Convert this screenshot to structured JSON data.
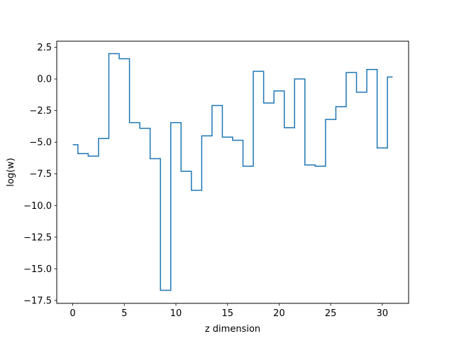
{
  "chart_data": {
    "type": "line",
    "drawstyle": "steps-mid",
    "title": "",
    "xlabel": "z dimension",
    "ylabel": "log(w)",
    "xlim": [
      -1.55,
      32.55
    ],
    "ylim": [
      -17.73,
      2.98
    ],
    "grid": false,
    "line_color": "#1f77b4",
    "x_ticks": [
      0,
      5,
      10,
      15,
      20,
      25,
      30
    ],
    "x_tick_labels": [
      "0",
      "5",
      "10",
      "15",
      "20",
      "25",
      "30"
    ],
    "y_ticks": [
      2.5,
      0.0,
      -2.5,
      -5.0,
      -7.5,
      -10.0,
      -12.5,
      -15.0,
      -17.5
    ],
    "y_tick_labels": [
      "2.5",
      "0.0",
      "−2.5",
      "−5.0",
      "−7.5",
      "−10.0",
      "−12.5",
      "−15.0",
      "−17.5"
    ],
    "series": [
      {
        "x": [
          0,
          1,
          2,
          3,
          4,
          5,
          6,
          7,
          8,
          9,
          10,
          11,
          12,
          13,
          14,
          15,
          16,
          17,
          18,
          19,
          20,
          21,
          22,
          23,
          24,
          25,
          26,
          27,
          28,
          29,
          30,
          31
        ],
        "values": [
          -5.2,
          -5.9,
          -6.1,
          -4.7,
          2.0,
          1.6,
          -3.45,
          -3.9,
          -6.3,
          -16.7,
          -3.45,
          -7.3,
          -8.8,
          -4.5,
          -2.1,
          -4.6,
          -4.85,
          -6.9,
          0.6,
          -1.9,
          -0.95,
          -3.85,
          0.0,
          -6.8,
          -6.9,
          -3.2,
          -2.2,
          0.5,
          -1.05,
          0.75,
          -5.45,
          0.15
        ]
      }
    ]
  }
}
